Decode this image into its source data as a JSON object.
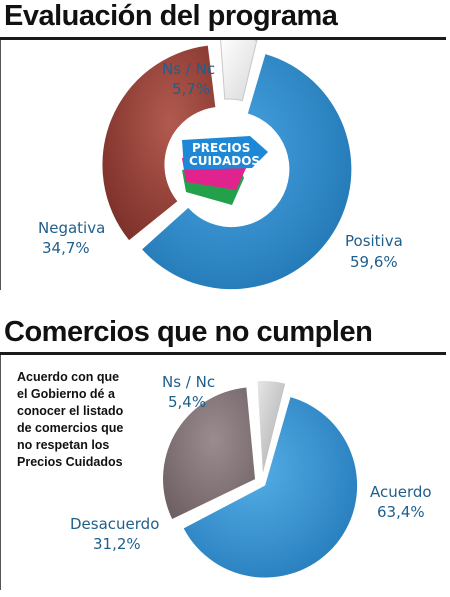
{
  "chart_data": [
    {
      "type": "pie",
      "title": "Evaluación del programa",
      "donut": true,
      "categories": [
        "Positiva",
        "Negativa",
        "Ns / Nc"
      ],
      "values": [
        59.6,
        34.7,
        5.7
      ],
      "value_labels": [
        "59,6%",
        "34,7%",
        "5,7%"
      ],
      "colors": [
        "#2f8fd0",
        "#9c4a40",
        "#f0f0f0"
      ],
      "logo_text": [
        "PRECIOS",
        "CUIDADOS"
      ]
    },
    {
      "type": "pie",
      "title": "Comercios que no cumplen",
      "subtitle": "Acuerdo con que\nel Gobierno dé a\nconocer el listado\nde comercios que\nno respetan los\nPrecios Cuidados",
      "categories": [
        "Acuerdo",
        "Desacuerdo",
        "Ns / Nc"
      ],
      "values": [
        63.4,
        31.2,
        5.4
      ],
      "value_labels": [
        "63,4%",
        "31,2%",
        "5,4%"
      ],
      "colors": [
        "#3b97d6",
        "#8a7a7e",
        "#bfbfbf"
      ]
    }
  ]
}
